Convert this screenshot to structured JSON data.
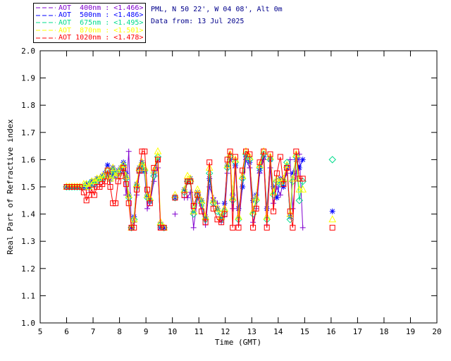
{
  "header": {
    "line1": "PML, N 50 22', W 04 08', Alt 0m",
    "line2": "Data from: 13 Jul 2025",
    "color": "#00008B"
  },
  "legend": {
    "entries": [
      "AOT  400nm : <1.466>",
      "AOT  500nm : <1.486>",
      "AOT  675nm : <1.495>",
      "AOT  870nm : <1.501>",
      "AOT 1020nm : <1.478>"
    ]
  },
  "chart_data": {
    "type": "line",
    "title": "",
    "xlabel": "Time (GMT)",
    "ylabel": "Real Part of Refractive index",
    "xlim": [
      5,
      20
    ],
    "ylim": [
      1.0,
      2.0
    ],
    "x_ticks": [
      5,
      6,
      7,
      8,
      9,
      10,
      11,
      12,
      13,
      14,
      15,
      16,
      17,
      18,
      19,
      20
    ],
    "y_ticks": [
      "1.0",
      "1.1",
      "1.2",
      "1.3",
      "1.4",
      "1.5",
      "1.6",
      "1.7",
      "1.8",
      "1.9",
      "2.0"
    ],
    "grid": false,
    "legend_position": "top-left",
    "axis_color": "#000000",
    "t_seg1": [
      6.0,
      6.1,
      6.2,
      6.3,
      6.4,
      6.5,
      6.65,
      6.75,
      6.85,
      6.95,
      7.05,
      7.15,
      7.25,
      7.35,
      7.45,
      7.55,
      7.65,
      7.75,
      7.85,
      7.95,
      8.05,
      8.15,
      8.25,
      8.35,
      8.45,
      8.55,
      8.65,
      8.75,
      8.85,
      8.95,
      9.05,
      9.15,
      9.3,
      9.45,
      9.55,
      9.68
    ],
    "t_iso1": 10.1,
    "t_seg3": [
      10.45,
      10.57,
      10.68,
      10.8,
      10.95,
      11.1,
      11.25,
      11.4,
      11.55,
      11.7,
      11.85,
      11.97,
      12.08,
      12.18,
      12.28,
      12.38,
      12.5,
      12.65,
      12.78,
      12.92,
      13.05,
      13.17,
      13.3,
      13.45,
      13.57,
      13.7,
      13.82,
      13.95,
      14.08,
      14.2,
      14.33,
      14.45,
      14.55,
      14.68,
      14.8,
      14.93
    ],
    "t_iso2": 16.05,
    "series": [
      {
        "name": "AOT 400nm",
        "legend_value": "<1.466>",
        "color": "#8000D0",
        "marker": "plus",
        "v_seg1": [
          1.5,
          1.5,
          1.5,
          1.5,
          1.5,
          1.5,
          1.5,
          1.5,
          1.49,
          1.51,
          1.5,
          1.51,
          1.52,
          1.52,
          1.53,
          1.54,
          1.52,
          1.55,
          1.53,
          1.54,
          1.55,
          1.56,
          1.47,
          1.63,
          1.35,
          1.37,
          1.47,
          1.55,
          1.57,
          1.55,
          1.42,
          1.44,
          1.52,
          1.57,
          1.37,
          1.35
        ],
        "v_iso1": 1.4,
        "v_seg3": [
          1.46,
          1.46,
          1.48,
          1.35,
          1.46,
          1.43,
          1.36,
          1.5,
          1.46,
          1.44,
          1.37,
          1.39,
          1.55,
          1.62,
          1.42,
          1.57,
          1.36,
          1.5,
          1.6,
          1.57,
          1.37,
          1.42,
          1.55,
          1.6,
          1.36,
          1.57,
          1.44,
          1.5,
          1.47,
          1.52,
          1.55,
          1.6,
          1.42,
          1.55,
          1.62,
          1.35
        ],
        "v_iso2": null
      },
      {
        "name": "AOT 500nm",
        "legend_value": "<1.486>",
        "color": "#0000FF",
        "marker": "asterisk",
        "v_seg1": [
          1.5,
          1.5,
          1.5,
          1.5,
          1.5,
          1.5,
          1.5,
          1.51,
          1.5,
          1.52,
          1.52,
          1.53,
          1.53,
          1.54,
          1.55,
          1.58,
          1.54,
          1.57,
          1.55,
          1.56,
          1.57,
          1.59,
          1.55,
          1.47,
          1.35,
          1.39,
          1.51,
          1.57,
          1.59,
          1.56,
          1.47,
          1.45,
          1.55,
          1.6,
          1.35,
          1.35
        ],
        "v_iso1": 1.46,
        "v_seg3": [
          1.49,
          1.52,
          1.53,
          1.41,
          1.48,
          1.45,
          1.39,
          1.53,
          1.45,
          1.42,
          1.39,
          1.44,
          1.58,
          1.6,
          1.47,
          1.58,
          1.42,
          1.5,
          1.61,
          1.59,
          1.45,
          1.47,
          1.56,
          1.61,
          1.42,
          1.6,
          1.5,
          1.46,
          1.53,
          1.5,
          1.57,
          1.39,
          1.55,
          1.6,
          1.57,
          1.6
        ],
        "v_iso2": 1.41
      },
      {
        "name": "AOT 675nm",
        "legend_value": "<1.495>",
        "color": "#00DC8C",
        "marker": "diamond",
        "v_seg1": [
          1.5,
          1.5,
          1.5,
          1.5,
          1.5,
          1.5,
          1.5,
          1.51,
          1.5,
          1.52,
          1.51,
          1.52,
          1.53,
          1.53,
          1.54,
          1.56,
          1.53,
          1.56,
          1.54,
          1.55,
          1.56,
          1.58,
          1.53,
          1.46,
          1.35,
          1.38,
          1.5,
          1.56,
          1.58,
          1.56,
          1.46,
          1.45,
          1.54,
          1.61,
          1.36,
          1.35
        ],
        "v_iso1": 1.46,
        "v_seg3": [
          1.48,
          1.52,
          1.52,
          1.4,
          1.47,
          1.44,
          1.38,
          1.55,
          1.44,
          1.41,
          1.38,
          1.41,
          1.57,
          1.61,
          1.45,
          1.59,
          1.38,
          1.53,
          1.62,
          1.6,
          1.4,
          1.45,
          1.57,
          1.62,
          1.38,
          1.6,
          1.47,
          1.52,
          1.51,
          1.52,
          1.59,
          1.38,
          1.52,
          1.61,
          1.45,
          1.52
        ],
        "v_iso2": 1.6
      },
      {
        "name": "AOT 870nm",
        "legend_value": "<1.501>",
        "color": "#FFFF00",
        "marker": "triangle",
        "v_seg1": [
          1.5,
          1.5,
          1.5,
          1.5,
          1.5,
          1.5,
          1.51,
          1.51,
          1.5,
          1.52,
          1.52,
          1.53,
          1.53,
          1.54,
          1.54,
          1.56,
          1.53,
          1.57,
          1.54,
          1.55,
          1.57,
          1.58,
          1.54,
          1.47,
          1.35,
          1.38,
          1.51,
          1.57,
          1.59,
          1.57,
          1.47,
          1.46,
          1.56,
          1.63,
          1.37,
          1.35
        ],
        "v_iso1": 1.47,
        "v_seg3": [
          1.49,
          1.54,
          1.53,
          1.41,
          1.49,
          1.45,
          1.39,
          1.57,
          1.45,
          1.42,
          1.39,
          1.42,
          1.58,
          1.62,
          1.46,
          1.6,
          1.39,
          1.54,
          1.63,
          1.61,
          1.41,
          1.46,
          1.58,
          1.63,
          1.39,
          1.61,
          1.48,
          1.53,
          1.52,
          1.53,
          1.58,
          1.4,
          1.53,
          1.62,
          1.49,
          1.49
        ],
        "v_iso2": 1.38
      },
      {
        "name": "AOT 1020nm",
        "legend_value": "<1.478>",
        "color": "#FF0000",
        "marker": "square",
        "v_seg1": [
          1.5,
          1.5,
          1.5,
          1.5,
          1.5,
          1.5,
          1.48,
          1.45,
          1.47,
          1.49,
          1.47,
          1.5,
          1.5,
          1.51,
          1.52,
          1.56,
          1.5,
          1.44,
          1.44,
          1.52,
          1.54,
          1.57,
          1.51,
          1.44,
          1.35,
          1.35,
          1.49,
          1.56,
          1.63,
          1.63,
          1.49,
          1.44,
          1.57,
          1.6,
          1.35,
          1.35
        ],
        "v_iso1": 1.46,
        "v_seg3": [
          1.47,
          1.52,
          1.52,
          1.43,
          1.47,
          1.41,
          1.37,
          1.59,
          1.42,
          1.38,
          1.37,
          1.4,
          1.6,
          1.63,
          1.35,
          1.61,
          1.35,
          1.56,
          1.63,
          1.62,
          1.35,
          1.42,
          1.59,
          1.63,
          1.35,
          1.62,
          1.41,
          1.55,
          1.61,
          1.51,
          1.57,
          1.41,
          1.35,
          1.63,
          1.53,
          1.53
        ],
        "v_iso2": 1.35
      }
    ]
  }
}
